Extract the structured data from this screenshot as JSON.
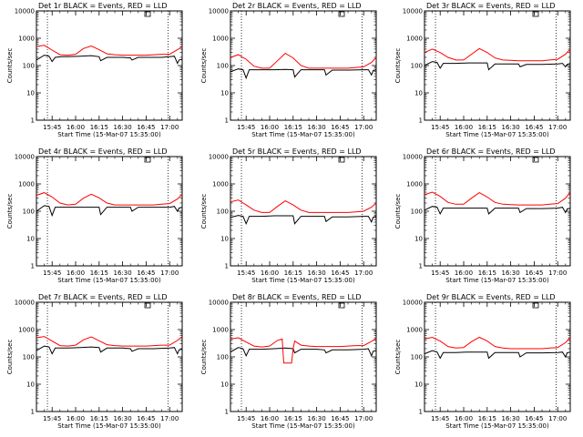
{
  "figure": {
    "colors": {
      "events": "#000000",
      "lld": "#ff0000",
      "axes": "#000000",
      "background": "#ffffff"
    },
    "time_ticks": [
      "15:45",
      "16:00",
      "16:15",
      "16:30",
      "16:45",
      "17:00"
    ],
    "y_tick_labels": [
      "1",
      "10",
      "100",
      "1000",
      "10000"
    ],
    "xlabel": "Start Time (15-Mar-07 15:35:00)",
    "ylabel": "Counts/sec"
  },
  "chart_data": [
    {
      "type": "line",
      "title": "Det 1r BLACK = Events, RED = LLD",
      "x_unit": "minutes after 15:35",
      "xlim": [
        0,
        93
      ],
      "ylim": [
        1,
        10000
      ],
      "y_scale": "log",
      "vlines": [
        7,
        84
      ],
      "series": [
        {
          "name": "Events",
          "color": "#000000",
          "x": [
            0,
            5,
            8,
            10,
            12,
            16,
            20,
            28,
            35,
            40,
            41,
            45,
            50,
            55,
            60,
            61,
            65,
            70,
            75,
            80,
            85,
            88,
            90,
            91,
            93
          ],
          "y": [
            160,
            240,
            220,
            140,
            200,
            210,
            210,
            220,
            230,
            210,
            150,
            200,
            200,
            200,
            190,
            160,
            200,
            200,
            200,
            200,
            210,
            220,
            120,
            160,
            170
          ]
        },
        {
          "name": "LLD",
          "color": "#ff0000",
          "x": [
            0,
            5,
            10,
            15,
            20,
            25,
            30,
            35,
            40,
            45,
            50,
            55,
            60,
            65,
            70,
            75,
            80,
            85,
            90,
            93
          ],
          "y": [
            500,
            550,
            370,
            250,
            240,
            260,
            420,
            520,
            380,
            270,
            250,
            240,
            240,
            240,
            240,
            250,
            260,
            260,
            380,
            500
          ]
        }
      ]
    },
    {
      "type": "line",
      "title": "Det 2r BLACK = Events, RED = LLD",
      "x_unit": "minutes after 15:35",
      "xlim": [
        0,
        93
      ],
      "ylim": [
        1,
        10000
      ],
      "y_scale": "log",
      "vlines": [
        7,
        84
      ],
      "series": [
        {
          "name": "Events",
          "color": "#000000",
          "x": [
            0,
            5,
            8,
            10,
            12,
            20,
            28,
            35,
            40,
            41,
            45,
            55,
            60,
            61,
            65,
            75,
            85,
            88,
            90,
            91,
            93
          ],
          "y": [
            60,
            75,
            70,
            35,
            70,
            70,
            70,
            72,
            70,
            38,
            70,
            70,
            70,
            45,
            68,
            68,
            70,
            70,
            45,
            65,
            70
          ]
        },
        {
          "name": "LLD",
          "color": "#ff0000",
          "x": [
            0,
            5,
            10,
            15,
            20,
            25,
            30,
            35,
            40,
            45,
            50,
            55,
            60,
            65,
            70,
            75,
            80,
            85,
            90,
            93
          ],
          "y": [
            200,
            250,
            170,
            95,
            80,
            80,
            150,
            280,
            190,
            100,
            80,
            80,
            80,
            80,
            80,
            80,
            85,
            90,
            130,
            200
          ]
        }
      ]
    },
    {
      "type": "line",
      "title": "Det 3r BLACK = Events, RED = LLD",
      "x_unit": "minutes after 15:35",
      "xlim": [
        0,
        93
      ],
      "ylim": [
        1,
        10000
      ],
      "y_scale": "log",
      "vlines": [
        7,
        84
      ],
      "series": [
        {
          "name": "Events",
          "color": "#000000",
          "x": [
            0,
            5,
            8,
            10,
            12,
            20,
            28,
            35,
            40,
            41,
            45,
            55,
            60,
            61,
            65,
            75,
            85,
            88,
            90,
            91,
            93
          ],
          "y": [
            100,
            140,
            130,
            80,
            120,
            120,
            125,
            125,
            125,
            70,
            115,
            115,
            115,
            90,
            110,
            110,
            115,
            120,
            90,
            110,
            120
          ]
        },
        {
          "name": "LLD",
          "color": "#ff0000",
          "x": [
            0,
            5,
            10,
            15,
            20,
            25,
            30,
            35,
            40,
            45,
            50,
            55,
            60,
            65,
            70,
            75,
            80,
            85,
            90,
            93
          ],
          "y": [
            300,
            400,
            300,
            200,
            160,
            160,
            260,
            420,
            300,
            190,
            160,
            155,
            150,
            150,
            150,
            150,
            160,
            170,
            260,
            400
          ]
        }
      ]
    },
    {
      "type": "line",
      "title": "Det 4r BLACK = Events, RED = LLD",
      "x_unit": "minutes after 15:35",
      "xlim": [
        0,
        93
      ],
      "ylim": [
        1,
        10000
      ],
      "y_scale": "log",
      "vlines": [
        7,
        84
      ],
      "series": [
        {
          "name": "Events",
          "color": "#000000",
          "x": [
            0,
            5,
            8,
            10,
            12,
            20,
            28,
            35,
            40,
            41,
            45,
            55,
            60,
            61,
            65,
            75,
            85,
            88,
            90,
            91,
            93
          ],
          "y": [
            100,
            160,
            150,
            70,
            140,
            140,
            140,
            140,
            140,
            75,
            140,
            140,
            140,
            100,
            140,
            140,
            140,
            150,
            100,
            130,
            140
          ]
        },
        {
          "name": "LLD",
          "color": "#ff0000",
          "x": [
            0,
            5,
            10,
            15,
            20,
            25,
            30,
            35,
            40,
            45,
            50,
            55,
            60,
            65,
            70,
            75,
            80,
            85,
            90,
            93
          ],
          "y": [
            380,
            480,
            330,
            200,
            170,
            180,
            300,
            420,
            310,
            200,
            170,
            170,
            170,
            170,
            170,
            170,
            180,
            190,
            280,
            420
          ]
        }
      ]
    },
    {
      "type": "line",
      "title": "Det 5r BLACK = Events, RED = LLD",
      "x_unit": "minutes after 15:35",
      "xlim": [
        0,
        93
      ],
      "ylim": [
        1,
        10000
      ],
      "y_scale": "log",
      "vlines": [
        7,
        84
      ],
      "series": [
        {
          "name": "Events",
          "color": "#000000",
          "x": [
            0,
            5,
            8,
            10,
            12,
            20,
            28,
            35,
            40,
            41,
            45,
            55,
            60,
            61,
            65,
            75,
            85,
            88,
            90,
            91,
            93
          ],
          "y": [
            60,
            70,
            65,
            35,
            65,
            65,
            68,
            68,
            68,
            35,
            65,
            65,
            65,
            42,
            62,
            62,
            65,
            65,
            40,
            60,
            65
          ]
        },
        {
          "name": "LLD",
          "color": "#ff0000",
          "x": [
            0,
            5,
            10,
            15,
            20,
            25,
            30,
            35,
            40,
            45,
            50,
            55,
            60,
            65,
            70,
            75,
            80,
            85,
            90,
            93
          ],
          "y": [
            220,
            260,
            170,
            110,
            90,
            90,
            150,
            240,
            170,
            110,
            90,
            90,
            90,
            90,
            90,
            90,
            95,
            100,
            140,
            200
          ]
        }
      ]
    },
    {
      "type": "line",
      "title": "Det 6r BLACK = Events, RED = LLD",
      "x_unit": "minutes after 15:35",
      "xlim": [
        0,
        93
      ],
      "ylim": [
        1,
        10000
      ],
      "y_scale": "log",
      "vlines": [
        7,
        84
      ],
      "series": [
        {
          "name": "Events",
          "color": "#000000",
          "x": [
            0,
            5,
            8,
            10,
            12,
            20,
            28,
            35,
            40,
            41,
            45,
            55,
            60,
            61,
            65,
            75,
            85,
            88,
            90,
            91,
            93
          ],
          "y": [
            110,
            150,
            140,
            80,
            130,
            130,
            130,
            130,
            130,
            80,
            130,
            130,
            130,
            90,
            125,
            125,
            130,
            140,
            90,
            120,
            130
          ]
        },
        {
          "name": "LLD",
          "color": "#ff0000",
          "x": [
            0,
            5,
            10,
            15,
            20,
            25,
            30,
            35,
            40,
            45,
            50,
            55,
            60,
            65,
            70,
            75,
            80,
            85,
            90,
            93
          ],
          "y": [
            400,
            500,
            350,
            210,
            180,
            180,
            300,
            480,
            330,
            210,
            180,
            175,
            170,
            170,
            170,
            170,
            180,
            190,
            300,
            500
          ]
        }
      ]
    },
    {
      "type": "line",
      "title": "Det 7r BLACK = Events, RED = LLD",
      "x_unit": "minutes after 15:35",
      "xlim": [
        0,
        93
      ],
      "ylim": [
        1,
        10000
      ],
      "y_scale": "log",
      "vlines": [
        7,
        84
      ],
      "series": [
        {
          "name": "Events",
          "color": "#000000",
          "x": [
            0,
            5,
            8,
            10,
            12,
            20,
            28,
            35,
            40,
            41,
            45,
            55,
            60,
            61,
            65,
            75,
            85,
            88,
            90,
            91,
            93
          ],
          "y": [
            170,
            250,
            230,
            130,
            210,
            210,
            220,
            230,
            220,
            150,
            210,
            210,
            200,
            160,
            200,
            200,
            210,
            220,
            130,
            180,
            190
          ]
        },
        {
          "name": "LLD",
          "color": "#ff0000",
          "x": [
            0,
            5,
            10,
            15,
            20,
            25,
            30,
            35,
            40,
            45,
            50,
            55,
            60,
            65,
            70,
            75,
            80,
            85,
            90,
            93
          ],
          "y": [
            500,
            560,
            380,
            260,
            250,
            270,
            420,
            540,
            390,
            280,
            260,
            250,
            250,
            250,
            250,
            260,
            270,
            270,
            400,
            550
          ]
        }
      ]
    },
    {
      "type": "line",
      "title": "Det 8r BLACK = Events, RED = LLD",
      "x_unit": "minutes after 15:35",
      "xlim": [
        0,
        93
      ],
      "ylim": [
        1,
        10000
      ],
      "y_scale": "log",
      "vlines": [
        7,
        84
      ],
      "series": [
        {
          "name": "Events",
          "color": "#000000",
          "x": [
            0,
            5,
            8,
            10,
            12,
            20,
            28,
            35,
            40,
            41,
            45,
            55,
            60,
            61,
            65,
            75,
            85,
            88,
            90,
            91,
            93
          ],
          "y": [
            150,
            220,
            200,
            110,
            190,
            190,
            200,
            210,
            200,
            140,
            190,
            190,
            180,
            140,
            180,
            180,
            190,
            200,
            110,
            160,
            170
          ]
        },
        {
          "name": "LLD",
          "color": "#ff0000",
          "x": [
            0,
            5,
            10,
            15,
            20,
            25,
            30,
            33,
            34,
            39,
            40,
            41,
            45,
            50,
            55,
            60,
            65,
            70,
            75,
            80,
            85,
            90,
            93
          ],
          "y": [
            450,
            500,
            350,
            250,
            230,
            250,
            400,
            450,
            60,
            60,
            200,
            380,
            270,
            250,
            240,
            240,
            240,
            240,
            250,
            260,
            260,
            370,
            480
          ]
        }
      ]
    },
    {
      "type": "line",
      "title": "Det 9r BLACK = Events, RED = LLD",
      "x_unit": "minutes after 15:35",
      "xlim": [
        0,
        93
      ],
      "ylim": [
        1,
        10000
      ],
      "y_scale": "log",
      "vlines": [
        7,
        84
      ],
      "series": [
        {
          "name": "Events",
          "color": "#000000",
          "x": [
            0,
            5,
            8,
            10,
            12,
            20,
            28,
            35,
            40,
            41,
            45,
            55,
            60,
            61,
            65,
            75,
            85,
            88,
            90,
            91,
            93
          ],
          "y": [
            130,
            170,
            150,
            90,
            145,
            145,
            150,
            150,
            150,
            90,
            145,
            145,
            145,
            100,
            140,
            140,
            145,
            150,
            100,
            140,
            150
          ]
        },
        {
          "name": "LLD",
          "color": "#ff0000",
          "x": [
            0,
            5,
            10,
            15,
            20,
            25,
            30,
            35,
            40,
            45,
            50,
            55,
            60,
            65,
            70,
            75,
            80,
            85,
            90,
            93
          ],
          "y": [
            450,
            520,
            380,
            240,
            210,
            220,
            360,
            520,
            380,
            240,
            210,
            200,
            200,
            200,
            200,
            200,
            210,
            220,
            330,
            520
          ]
        }
      ]
    }
  ]
}
